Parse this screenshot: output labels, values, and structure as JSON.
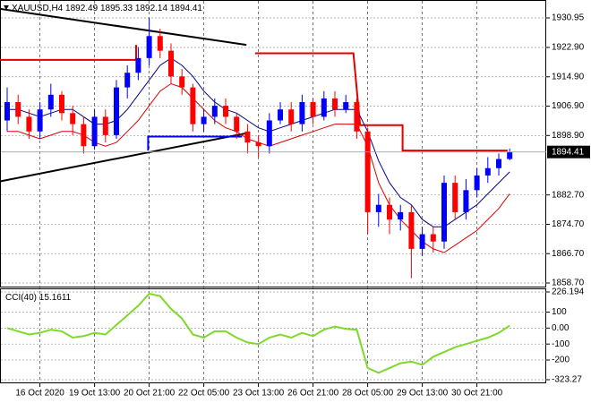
{
  "chart_data": [
    {
      "type": "candlestick",
      "title": "XAUUSD,H4",
      "categories": [
        null,
        null,
        null,
        "16 Oct 2020",
        null,
        null,
        null,
        null,
        "19 Oct 13:00",
        null,
        null,
        null,
        null,
        "20 Oct 21:00",
        null,
        null,
        null,
        null,
        "22 Oct 05:00",
        null,
        null,
        null,
        null,
        "23 Oct 13:00",
        null,
        null,
        null,
        null,
        "26 Oct 21:00",
        null,
        null,
        null,
        null,
        "28 Oct 05:00",
        null,
        null,
        null,
        null,
        "29 Oct 13:00",
        null,
        null,
        null,
        null,
        "30 Oct 21:00",
        null,
        null,
        null
      ],
      "open": [
        1903,
        1908,
        1904,
        1900,
        1906,
        1910,
        1905,
        1902,
        1896,
        1904,
        1899,
        1912,
        1916,
        1920,
        1926,
        1922,
        1915,
        1912,
        1902,
        1904,
        1907,
        1904,
        1900,
        1897,
        1896,
        1903,
        1906,
        1902,
        1908,
        1904,
        1909,
        1906,
        1908,
        1900,
        1878,
        1880,
        1876,
        1878,
        1868,
        1872,
        1870,
        1886,
        1878,
        1884,
        1888,
        1890,
        1892.49
      ],
      "high": [
        1912,
        1910,
        1906,
        1908,
        1913,
        1911,
        1907,
        1904,
        1906,
        1906,
        1914,
        1918,
        1923,
        1931,
        1928,
        1924,
        1917,
        1913,
        1906,
        1909,
        1909,
        1905,
        1902,
        1899,
        1905,
        1908,
        1908,
        1910,
        1909,
        1911,
        1911,
        1910,
        1909,
        1901,
        1883,
        1882,
        1880,
        1880,
        1874,
        1874,
        1888,
        1888,
        1887,
        1890,
        1893,
        1894,
        1895.33
      ],
      "low": [
        1900,
        1902,
        1898,
        1898,
        1904,
        1903,
        1899,
        1894,
        1895,
        1897,
        1898,
        1909,
        1914,
        1918,
        1920,
        1913,
        1910,
        1900,
        1900,
        1902,
        1902,
        1898,
        1894,
        1893,
        1894,
        1902,
        1900,
        1900,
        1902,
        1903,
        1904,
        1905,
        1898,
        1872,
        1874,
        1872,
        1873,
        1860,
        1866,
        1867,
        1868,
        1876,
        1876,
        1882,
        1886,
        1888,
        1892.14
      ],
      "close": [
        1908,
        1904,
        1900,
        1906,
        1910,
        1905,
        1902,
        1896,
        1904,
        1899,
        1912,
        1916,
        1920,
        1926,
        1922,
        1915,
        1912,
        1902,
        1904,
        1907,
        1904,
        1900,
        1897,
        1896,
        1903,
        1906,
        1902,
        1908,
        1904,
        1909,
        1906,
        1908,
        1900,
        1878,
        1880,
        1876,
        1878,
        1868,
        1872,
        1870,
        1886,
        1878,
        1884,
        1888,
        1890,
        1892.49,
        1894.41
      ],
      "up_color": "#0000ff",
      "down_color": "#ff0000",
      "series": [
        {
          "color": "#00008b",
          "values": [
            1906,
            1906,
            1905,
            1904,
            1905,
            1906,
            1906,
            1904,
            1902,
            1902,
            1903,
            1906,
            1910,
            1914,
            1918,
            1920,
            1918,
            1915,
            1911,
            1908,
            1906,
            1905,
            1903,
            1901,
            1900,
            1901,
            1902,
            1903,
            1904,
            1905,
            1906,
            1906,
            1906,
            1900,
            1892,
            1886,
            1882,
            1880,
            1876,
            1874,
            1874,
            1876,
            1878,
            1880,
            1883,
            1886,
            1889
          ]
        },
        {
          "color": "#dd0000",
          "values": [
            1900,
            1900,
            1899,
            1898,
            1899,
            1900,
            1900,
            1899,
            1897,
            1896,
            1897,
            1900,
            1903,
            1907,
            1911,
            1913,
            1912,
            1909,
            1906,
            1903,
            1901,
            1900,
            1898,
            1897,
            1896,
            1897,
            1898,
            1899,
            1900,
            1901,
            1902,
            1902,
            1902,
            1896,
            1886,
            1880,
            1876,
            1873,
            1870,
            1868,
            1867,
            1869,
            1871,
            1873,
            1876,
            1879,
            1883
          ]
        }
      ],
      "lines": [
        {
          "color": "#000000",
          "x": [
            -0.65,
            21.9
          ],
          "y": [
            1933.4,
            1923.6
          ]
        },
        {
          "color": "#000000",
          "x": [
            -0.65,
            21.9
          ],
          "y": [
            1886.4,
            1899.5
          ]
        },
        {
          "color": "#e00000",
          "x": [
            -0.65,
            11.8,
            11.8,
            null,
            22.7,
            31.7,
            32.3,
            36.2,
            36.2,
            45.8
          ],
          "y": [
            1919.5,
            1919.5,
            1923.6,
            null,
            1921.3,
            1921.3,
            1901.7,
            1901.7,
            1894.8,
            1894.8
          ]
        },
        {
          "color": "#0000ff",
          "x": [
            12.9,
            12.9,
            21.5
          ],
          "y": [
            1894.8,
            1898.6,
            1898.6
          ]
        }
      ],
      "ylim": [
        1858.21,
        1935.34
      ],
      "yticks": [
        1930.95,
        {
          "value": 1922.9,
          "label": "1922.90"
        },
        {
          "value": 1914.9,
          "label": "1914.90"
        },
        {
          "value": 1906.9,
          "label": "1906.90"
        },
        {
          "value": 1898.9,
          "label": "1898.90"
        },
        {
          "value": 1882.7,
          "label": "1882.70"
        },
        {
          "value": 1874.7,
          "label": "1874.70"
        },
        {
          "value": 1866.7,
          "label": "1866.70"
        },
        {
          "value": 1858.7,
          "label": "1858.70"
        }
      ],
      "grid": true
    },
    {
      "type": "line",
      "title": "CCI(40)",
      "series": [
        {
          "color": "#7fd92a",
          "values": [
            0,
            -20,
            -40,
            -30,
            -10,
            -20,
            -60,
            -50,
            -30,
            -40,
            20,
            80,
            140,
            215,
            200,
            120,
            60,
            -40,
            -60,
            -20,
            -20,
            -60,
            -90,
            -100,
            -60,
            -40,
            -60,
            -30,
            -50,
            -10,
            10,
            -5,
            -10,
            -250,
            -280,
            -250,
            -220,
            -210,
            -230,
            -180,
            -150,
            -120,
            -100,
            -80,
            -60,
            -30,
            15.1611
          ]
        }
      ],
      "ylim": [
        -323.27,
        226.194
      ],
      "yticks": [
        226.194,
        100,
        {
          "value": 0,
          "label": "0.00"
        },
        -100,
        -200,
        -323.27
      ],
      "grid": true
    }
  ]
}
